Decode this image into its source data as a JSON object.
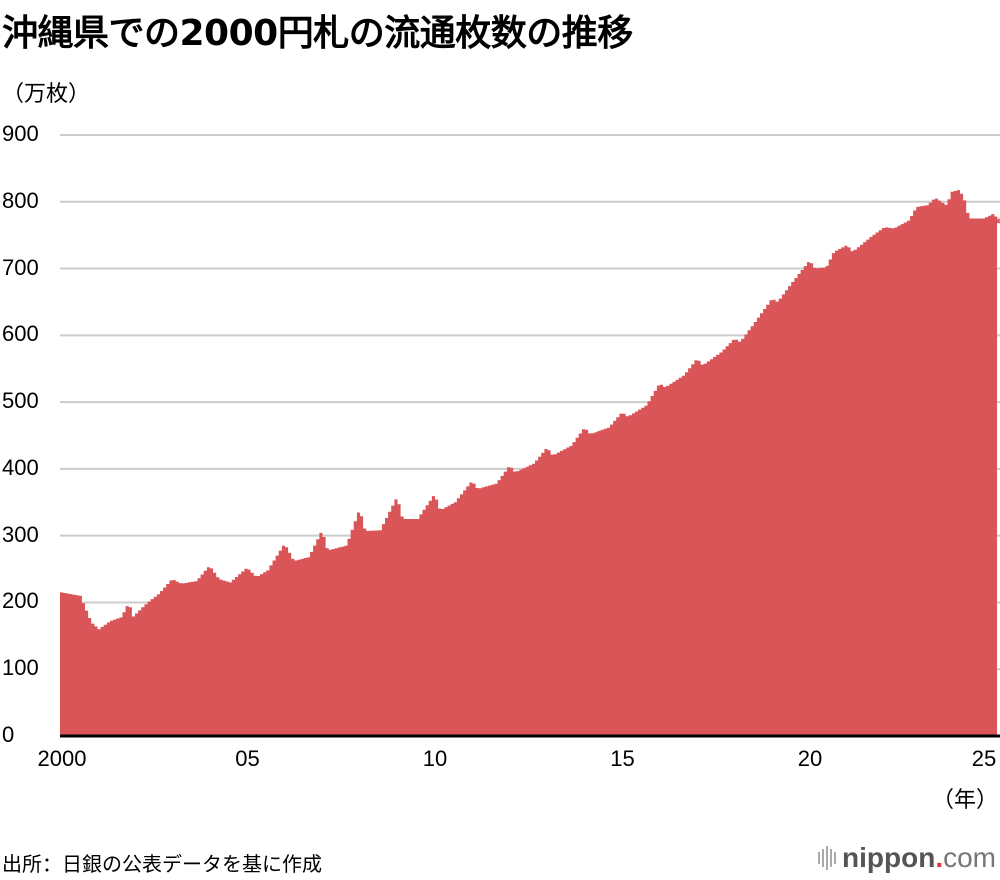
{
  "title": "沖縄県での2000円札の流通枚数の推移",
  "y_unit": "（万枚）",
  "x_unit": "（年）",
  "source": "出所：日銀の公表データを基に作成",
  "logo": {
    "name": "nippon",
    "dot": ".",
    "tld": "com"
  },
  "colors": {
    "bar": "#d95557",
    "grid": "#cccccc",
    "axis": "#000000"
  },
  "chart_data": {
    "type": "area",
    "title": "沖縄県での2000円札の流通枚数の推移",
    "xlabel": "（年）",
    "ylabel": "（万枚）",
    "ylim": [
      0,
      900
    ],
    "yticks": [
      0,
      100,
      200,
      300,
      400,
      500,
      600,
      700,
      800,
      900
    ],
    "xtick_labels": [
      "2000",
      "05",
      "10",
      "15",
      "20",
      "25"
    ],
    "grid": true,
    "frequency": "monthly (approx.)",
    "anchors": [
      {
        "year": 2000.0,
        "value": 215
      },
      {
        "year": 2000.5,
        "value": 210
      },
      {
        "year": 2000.8,
        "value": 170
      },
      {
        "year": 2001.0,
        "value": 160
      },
      {
        "year": 2001.3,
        "value": 172
      },
      {
        "year": 2001.6,
        "value": 178
      },
      {
        "year": 2001.8,
        "value": 200
      },
      {
        "year": 2001.9,
        "value": 178
      },
      {
        "year": 2002.3,
        "value": 200
      },
      {
        "year": 2002.6,
        "value": 213
      },
      {
        "year": 2002.95,
        "value": 235
      },
      {
        "year": 2003.2,
        "value": 228
      },
      {
        "year": 2003.6,
        "value": 232
      },
      {
        "year": 2003.95,
        "value": 255
      },
      {
        "year": 2004.2,
        "value": 235
      },
      {
        "year": 2004.5,
        "value": 230
      },
      {
        "year": 2004.95,
        "value": 252
      },
      {
        "year": 2005.2,
        "value": 238
      },
      {
        "year": 2005.5,
        "value": 248
      },
      {
        "year": 2005.95,
        "value": 288
      },
      {
        "year": 2006.2,
        "value": 262
      },
      {
        "year": 2006.6,
        "value": 268
      },
      {
        "year": 2006.95,
        "value": 308
      },
      {
        "year": 2007.1,
        "value": 278
      },
      {
        "year": 2007.6,
        "value": 285
      },
      {
        "year": 2007.95,
        "value": 340
      },
      {
        "year": 2008.1,
        "value": 307
      },
      {
        "year": 2008.5,
        "value": 308
      },
      {
        "year": 2008.95,
        "value": 358
      },
      {
        "year": 2009.1,
        "value": 325
      },
      {
        "year": 2009.5,
        "value": 325
      },
      {
        "year": 2009.95,
        "value": 362
      },
      {
        "year": 2010.1,
        "value": 338
      },
      {
        "year": 2010.5,
        "value": 350
      },
      {
        "year": 2010.95,
        "value": 382
      },
      {
        "year": 2011.1,
        "value": 370
      },
      {
        "year": 2011.6,
        "value": 378
      },
      {
        "year": 2011.95,
        "value": 405
      },
      {
        "year": 2012.1,
        "value": 395
      },
      {
        "year": 2012.6,
        "value": 408
      },
      {
        "year": 2012.95,
        "value": 432
      },
      {
        "year": 2013.1,
        "value": 420
      },
      {
        "year": 2013.6,
        "value": 435
      },
      {
        "year": 2013.95,
        "value": 462
      },
      {
        "year": 2014.1,
        "value": 452
      },
      {
        "year": 2014.6,
        "value": 462
      },
      {
        "year": 2014.95,
        "value": 485
      },
      {
        "year": 2015.1,
        "value": 478
      },
      {
        "year": 2015.6,
        "value": 495
      },
      {
        "year": 2015.95,
        "value": 528
      },
      {
        "year": 2016.1,
        "value": 522
      },
      {
        "year": 2016.6,
        "value": 540
      },
      {
        "year": 2016.95,
        "value": 565
      },
      {
        "year": 2017.1,
        "value": 555
      },
      {
        "year": 2017.6,
        "value": 575
      },
      {
        "year": 2017.95,
        "value": 595
      },
      {
        "year": 2018.1,
        "value": 590
      },
      {
        "year": 2018.5,
        "value": 620
      },
      {
        "year": 2018.95,
        "value": 655
      },
      {
        "year": 2019.1,
        "value": 650
      },
      {
        "year": 2019.5,
        "value": 680
      },
      {
        "year": 2019.95,
        "value": 712
      },
      {
        "year": 2020.1,
        "value": 700
      },
      {
        "year": 2020.4,
        "value": 702
      },
      {
        "year": 2020.6,
        "value": 725
      },
      {
        "year": 2020.95,
        "value": 735
      },
      {
        "year": 2021.1,
        "value": 725
      },
      {
        "year": 2021.6,
        "value": 748
      },
      {
        "year": 2021.95,
        "value": 762
      },
      {
        "year": 2022.2,
        "value": 760
      },
      {
        "year": 2022.6,
        "value": 772
      },
      {
        "year": 2022.8,
        "value": 792
      },
      {
        "year": 2023.1,
        "value": 795
      },
      {
        "year": 2023.3,
        "value": 806
      },
      {
        "year": 2023.6,
        "value": 795
      },
      {
        "year": 2023.75,
        "value": 815
      },
      {
        "year": 2023.95,
        "value": 818
      },
      {
        "year": 2024.1,
        "value": 800
      },
      {
        "year": 2024.2,
        "value": 775
      },
      {
        "year": 2024.6,
        "value": 775
      },
      {
        "year": 2024.85,
        "value": 782
      },
      {
        "year": 2025.0,
        "value": 773
      },
      {
        "year": 2025.2,
        "value": 776
      },
      {
        "year": 2025.4,
        "value": 768
      }
    ]
  }
}
